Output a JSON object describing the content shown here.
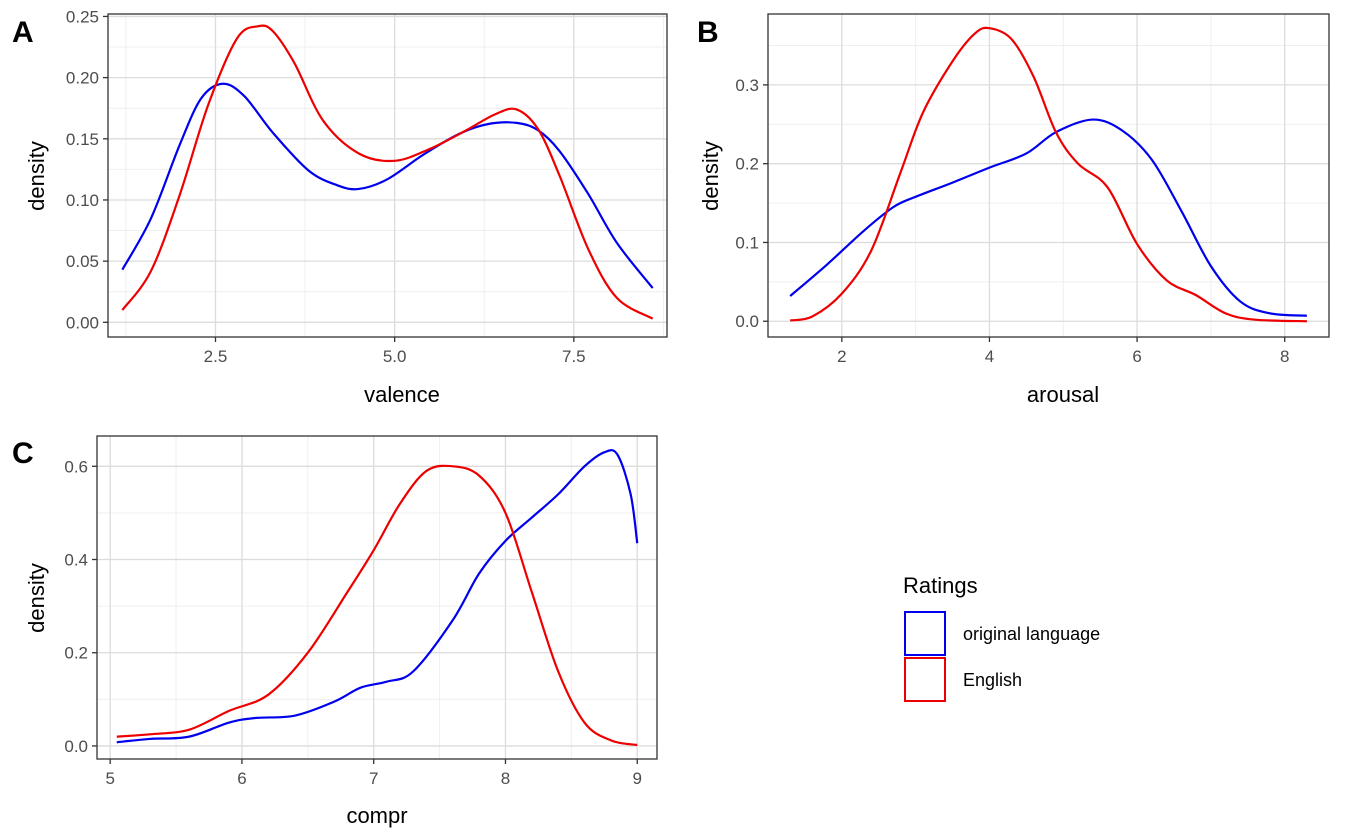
{
  "colors": {
    "original_language": "#0000ee",
    "english": "#ee0000",
    "grid_major": "#dcdcdc",
    "grid_minor": "#efefef",
    "panel_border": "#333333"
  },
  "legend": {
    "title": "Ratings",
    "placement": "right-bottom",
    "items": [
      {
        "label": "original language",
        "color": "#0000ee"
      },
      {
        "label": "English",
        "color": "#ee0000"
      }
    ]
  },
  "chart_data": [
    {
      "type": "line",
      "panel": "A",
      "xlabel": "valence",
      "ylabel": "density",
      "xlim": [
        1.0,
        8.8
      ],
      "ylim": [
        -0.012,
        0.252
      ],
      "xticks": [
        2.5,
        5.0,
        7.5
      ],
      "xtick_labels": [
        "2.5",
        "5.0",
        "7.5"
      ],
      "yticks": [
        0.0,
        0.05,
        0.1,
        0.15,
        0.2,
        0.25
      ],
      "ytick_labels": [
        "0.00",
        "0.05",
        "0.10",
        "0.15",
        "0.20",
        "0.25"
      ],
      "grid": true,
      "series": [
        {
          "name": "original language",
          "x": [
            1.2,
            1.6,
            2.0,
            2.3,
            2.6,
            2.9,
            3.3,
            3.8,
            4.2,
            4.5,
            4.9,
            5.4,
            5.9,
            6.3,
            6.7,
            7.0,
            7.3,
            7.7,
            8.1,
            8.6
          ],
          "y": [
            0.043,
            0.085,
            0.145,
            0.183,
            0.195,
            0.185,
            0.155,
            0.124,
            0.112,
            0.109,
            0.117,
            0.137,
            0.154,
            0.162,
            0.163,
            0.157,
            0.14,
            0.105,
            0.065,
            0.028
          ]
        },
        {
          "name": "English",
          "x": [
            1.2,
            1.6,
            2.0,
            2.4,
            2.8,
            3.1,
            3.3,
            3.6,
            4.0,
            4.5,
            5.0,
            5.5,
            6.0,
            6.4,
            6.7,
            7.0,
            7.3,
            7.7,
            8.1,
            8.6
          ],
          "y": [
            0.01,
            0.042,
            0.104,
            0.178,
            0.232,
            0.242,
            0.238,
            0.212,
            0.165,
            0.138,
            0.132,
            0.142,
            0.157,
            0.17,
            0.174,
            0.158,
            0.12,
            0.06,
            0.02,
            0.003
          ]
        }
      ]
    },
    {
      "type": "line",
      "panel": "B",
      "xlabel": "arousal",
      "ylabel": "density",
      "xlim": [
        1.0,
        8.6
      ],
      "ylim": [
        -0.02,
        0.39
      ],
      "xticks": [
        2,
        4,
        6,
        8
      ],
      "xtick_labels": [
        "2",
        "4",
        "6",
        "8"
      ],
      "yticks": [
        0.0,
        0.1,
        0.2,
        0.3
      ],
      "ytick_labels": [
        "0.0",
        "0.1",
        "0.2",
        "0.3"
      ],
      "grid": true,
      "series": [
        {
          "name": "original language",
          "x": [
            1.3,
            1.8,
            2.3,
            2.7,
            3.0,
            3.5,
            4.0,
            4.5,
            4.9,
            5.4,
            5.8,
            6.2,
            6.6,
            7.0,
            7.4,
            7.8,
            8.3
          ],
          "y": [
            0.032,
            0.072,
            0.115,
            0.145,
            0.158,
            0.176,
            0.195,
            0.213,
            0.24,
            0.256,
            0.242,
            0.205,
            0.14,
            0.07,
            0.025,
            0.01,
            0.007
          ]
        },
        {
          "name": "English",
          "x": [
            1.3,
            1.6,
            2.0,
            2.4,
            2.8,
            3.1,
            3.5,
            3.8,
            4.0,
            4.3,
            4.6,
            4.9,
            5.2,
            5.6,
            6.0,
            6.4,
            6.8,
            7.2,
            7.6,
            8.3
          ],
          "y": [
            0.001,
            0.006,
            0.035,
            0.09,
            0.19,
            0.265,
            0.33,
            0.365,
            0.372,
            0.358,
            0.31,
            0.24,
            0.2,
            0.17,
            0.098,
            0.052,
            0.033,
            0.01,
            0.002,
            0.0
          ]
        }
      ]
    },
    {
      "type": "line",
      "panel": "C",
      "xlabel": "compr",
      "ylabel": "density",
      "xlim": [
        4.9,
        9.15
      ],
      "ylim": [
        -0.028,
        0.665
      ],
      "xticks": [
        5,
        6,
        7,
        8,
        9
      ],
      "xtick_labels": [
        "5",
        "6",
        "7",
        "8",
        "9"
      ],
      "yticks": [
        0.0,
        0.2,
        0.4,
        0.6
      ],
      "ytick_labels": [
        "0.0",
        "0.2",
        "0.4",
        "0.6"
      ],
      "grid": true,
      "series": [
        {
          "name": "original language",
          "x": [
            5.05,
            5.3,
            5.6,
            5.9,
            6.1,
            6.4,
            6.7,
            6.9,
            7.1,
            7.3,
            7.6,
            7.8,
            8.0,
            8.2,
            8.4,
            8.6,
            8.75,
            8.85,
            8.95,
            9.0
          ],
          "y": [
            0.008,
            0.015,
            0.02,
            0.05,
            0.06,
            0.065,
            0.095,
            0.125,
            0.138,
            0.16,
            0.27,
            0.37,
            0.44,
            0.49,
            0.54,
            0.6,
            0.63,
            0.625,
            0.54,
            0.435
          ]
        },
        {
          "name": "English",
          "x": [
            5.05,
            5.3,
            5.6,
            5.9,
            6.2,
            6.5,
            6.8,
            7.0,
            7.2,
            7.4,
            7.6,
            7.8,
            8.0,
            8.2,
            8.4,
            8.6,
            8.8,
            9.0
          ],
          "y": [
            0.02,
            0.025,
            0.035,
            0.075,
            0.11,
            0.2,
            0.33,
            0.42,
            0.52,
            0.59,
            0.6,
            0.58,
            0.5,
            0.33,
            0.16,
            0.05,
            0.012,
            0.002
          ]
        }
      ]
    }
  ]
}
